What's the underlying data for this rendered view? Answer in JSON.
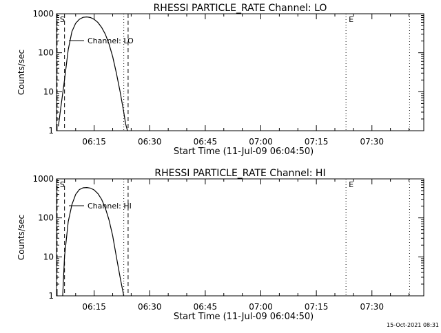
{
  "footer": {
    "timestamp": "15-Oct-2021 08:31"
  },
  "chart_data": [
    {
      "type": "line",
      "title": "RHESSI PARTICLE_RATE Channel: LO",
      "xlabel": "Start Time (11-Jul-09 06:04:50)",
      "ylabel": "Counts/sec",
      "yscale": "log",
      "xlim": [
        "06:04:50",
        "07:44:00"
      ],
      "ylim": [
        1,
        1000
      ],
      "x_ticks": [
        "06:15",
        "06:30",
        "06:45",
        "07:00",
        "07:15",
        "07:30"
      ],
      "y_ticks": [
        "1",
        "10",
        "100",
        "1000"
      ],
      "series": [
        {
          "name": "Channel: LO",
          "x": [
            "06:05:20",
            "06:06:00",
            "06:07:00",
            "06:08:00",
            "06:09:00",
            "06:10:00",
            "06:11:00",
            "06:12:00",
            "06:13:00",
            "06:14:00",
            "06:15:00",
            "06:16:00",
            "06:17:00",
            "06:18:00",
            "06:19:00",
            "06:20:00",
            "06:21:00",
            "06:22:00",
            "06:23:00",
            "06:23:30",
            "06:24:00"
          ],
          "y": [
            1.3,
            4,
            20,
            120,
            350,
            570,
            720,
            810,
            830,
            800,
            720,
            600,
            450,
            300,
            170,
            80,
            30,
            10,
            3,
            1.5,
            1.0
          ]
        }
      ],
      "markers": [
        {
          "label": "S",
          "time": "06:05:00",
          "style": "dashed"
        },
        {
          "label": "",
          "time": "06:07:00",
          "style": "dashed"
        },
        {
          "label": "",
          "time": "06:23:00",
          "style": "dotted"
        },
        {
          "label": "",
          "time": "06:24:10",
          "style": "dashed"
        },
        {
          "label": "E",
          "time": "07:23:00",
          "style": "dotted"
        },
        {
          "label": "",
          "time": "07:40:10",
          "style": "dotted"
        }
      ],
      "legend_position": "upper-left"
    },
    {
      "type": "line",
      "title": "RHESSI PARTICLE_RATE Channel: HI",
      "xlabel": "Start Time (11-Jul-09 06:04:50)",
      "ylabel": "Counts/sec",
      "yscale": "log",
      "xlim": [
        "06:04:50",
        "07:44:00"
      ],
      "ylim": [
        1,
        1000
      ],
      "x_ticks": [
        "06:15",
        "06:30",
        "06:45",
        "07:00",
        "07:15",
        "07:30"
      ],
      "y_ticks": [
        "1",
        "10",
        "100",
        "1000"
      ],
      "series": [
        {
          "name": "Channel: HI",
          "x": [
            "06:06:30",
            "06:07:00",
            "06:08:00",
            "06:09:00",
            "06:10:00",
            "06:11:00",
            "06:12:00",
            "06:13:00",
            "06:14:00",
            "06:15:00",
            "06:16:00",
            "06:17:00",
            "06:18:00",
            "06:19:00",
            "06:20:00",
            "06:21:00",
            "06:22:00",
            "06:23:00"
          ],
          "y": [
            1.0,
            10,
            80,
            220,
            400,
            530,
            590,
            600,
            580,
            520,
            420,
            300,
            180,
            90,
            35,
            10,
            3,
            1.0
          ]
        }
      ],
      "markers": [
        {
          "label": "S",
          "time": "06:05:00",
          "style": "dashed"
        },
        {
          "label": "",
          "time": "06:07:00",
          "style": "dashed"
        },
        {
          "label": "",
          "time": "06:23:00",
          "style": "dotted"
        },
        {
          "label": "",
          "time": "06:24:10",
          "style": "dashed"
        },
        {
          "label": "E",
          "time": "07:23:00",
          "style": "dotted"
        },
        {
          "label": "",
          "time": "07:40:10",
          "style": "dotted"
        }
      ],
      "legend_position": "upper-left"
    }
  ]
}
